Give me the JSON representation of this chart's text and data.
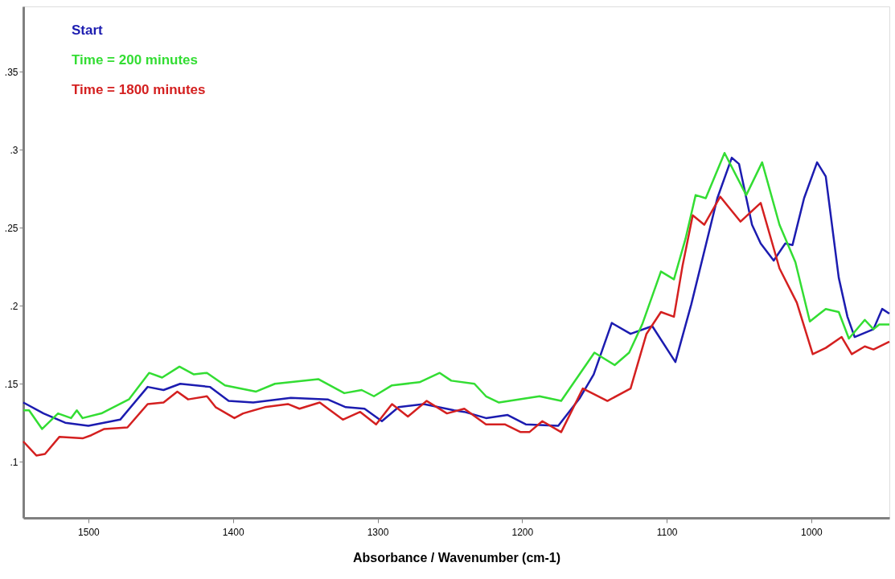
{
  "chart_data": {
    "type": "line",
    "xlabel": "Absorbance / Wavenumber (cm-1)",
    "xlim": [
      1545,
      946
    ],
    "ylim": [
      0.064,
      0.392
    ],
    "xticks": [
      1500,
      1400,
      1300,
      1200,
      1100,
      1000
    ],
    "yticks": [
      {
        "value": 0.1,
        "label": ".1"
      },
      {
        "value": 0.15,
        "label": ".15"
      },
      {
        "value": 0.2,
        "label": ".2"
      },
      {
        "value": 0.25,
        "label": ".25"
      },
      {
        "value": 0.3,
        "label": ".3"
      },
      {
        "value": 0.35,
        "label": ".35"
      }
    ],
    "grid": false,
    "legend": "top left",
    "marker": "none",
    "line_style": "solid",
    "series": [
      {
        "name": "Start",
        "color": "#1c1cb0",
        "x": [
          1545,
          1531,
          1516,
          1500,
          1478,
          1459,
          1448,
          1436.5,
          1416,
          1403,
          1386,
          1360,
          1334.5,
          1322,
          1309,
          1297,
          1285.5,
          1268,
          1247,
          1240,
          1225,
          1210,
          1197.5,
          1175,
          1160,
          1150.5,
          1138,
          1125,
          1110,
          1094,
          1083,
          1065,
          1055,
          1050,
          1041,
          1035,
          1026,
          1018,
          1013,
          1005,
          996,
          990,
          981,
          975,
          970,
          957,
          951,
          946
        ],
        "values": [
          0.138,
          0.131,
          0.125,
          0.123,
          0.127,
          0.148,
          0.146,
          0.15,
          0.148,
          0.139,
          0.138,
          0.141,
          0.14,
          0.135,
          0.134,
          0.126,
          0.135,
          0.137,
          0.133,
          0.132,
          0.128,
          0.13,
          0.124,
          0.123,
          0.141,
          0.156,
          0.189,
          0.182,
          0.187,
          0.164,
          0.201,
          0.269,
          0.295,
          0.291,
          0.252,
          0.24,
          0.229,
          0.24,
          0.239,
          0.269,
          0.292,
          0.283,
          0.218,
          0.193,
          0.18,
          0.185,
          0.198,
          0.195
        ]
      },
      {
        "name": "Time = 200 minutes",
        "color": "#33dd33",
        "x": [
          1545,
          1541,
          1532,
          1521,
          1512,
          1508,
          1504,
          1491,
          1472,
          1458,
          1449,
          1437,
          1427,
          1418,
          1405.5,
          1384,
          1371,
          1341,
          1323,
          1311,
          1302.5,
          1290,
          1271,
          1257,
          1249,
          1233,
          1225,
          1216,
          1188,
          1173,
          1150,
          1136,
          1126,
          1117,
          1104,
          1095,
          1087,
          1080,
          1073,
          1060,
          1045,
          1034,
          1022,
          1011,
          1001,
          990,
          981,
          974,
          963,
          957,
          953,
          946
        ],
        "values": [
          0.133,
          0.133,
          0.121,
          0.131,
          0.128,
          0.133,
          0.128,
          0.131,
          0.14,
          0.157,
          0.154,
          0.161,
          0.156,
          0.157,
          0.149,
          0.145,
          0.15,
          0.153,
          0.144,
          0.146,
          0.142,
          0.149,
          0.151,
          0.157,
          0.152,
          0.15,
          0.142,
          0.138,
          0.142,
          0.139,
          0.17,
          0.162,
          0.17,
          0.188,
          0.222,
          0.217,
          0.243,
          0.271,
          0.269,
          0.298,
          0.271,
          0.292,
          0.252,
          0.228,
          0.19,
          0.198,
          0.196,
          0.179,
          0.191,
          0.185,
          0.188,
          0.188
        ]
      },
      {
        "name": "Time = 1800 minutes",
        "color": "#d42020",
        "x": [
          1545,
          1536,
          1530,
          1520,
          1504,
          1498,
          1489,
          1473,
          1459,
          1448,
          1438.5,
          1431,
          1418,
          1412,
          1399,
          1393,
          1378,
          1362,
          1354,
          1340,
          1324,
          1312,
          1301,
          1290,
          1279,
          1266,
          1252,
          1240,
          1225,
          1212,
          1201,
          1195,
          1186,
          1173,
          1158,
          1141,
          1125,
          1114,
          1104,
          1095,
          1089,
          1082,
          1074,
          1063,
          1049,
          1035,
          1022,
          1010,
          999,
          990,
          979,
          972,
          963,
          957,
          946
        ],
        "values": [
          0.113,
          0.104,
          0.105,
          0.116,
          0.115,
          0.117,
          0.121,
          0.122,
          0.137,
          0.138,
          0.145,
          0.14,
          0.142,
          0.135,
          0.128,
          0.131,
          0.135,
          0.137,
          0.134,
          0.138,
          0.127,
          0.132,
          0.124,
          0.137,
          0.129,
          0.139,
          0.131,
          0.134,
          0.124,
          0.124,
          0.119,
          0.119,
          0.126,
          0.119,
          0.147,
          0.139,
          0.147,
          0.182,
          0.196,
          0.193,
          0.226,
          0.258,
          0.252,
          0.27,
          0.254,
          0.266,
          0.224,
          0.202,
          0.169,
          0.173,
          0.18,
          0.169,
          0.174,
          0.172,
          0.177
        ]
      }
    ]
  }
}
